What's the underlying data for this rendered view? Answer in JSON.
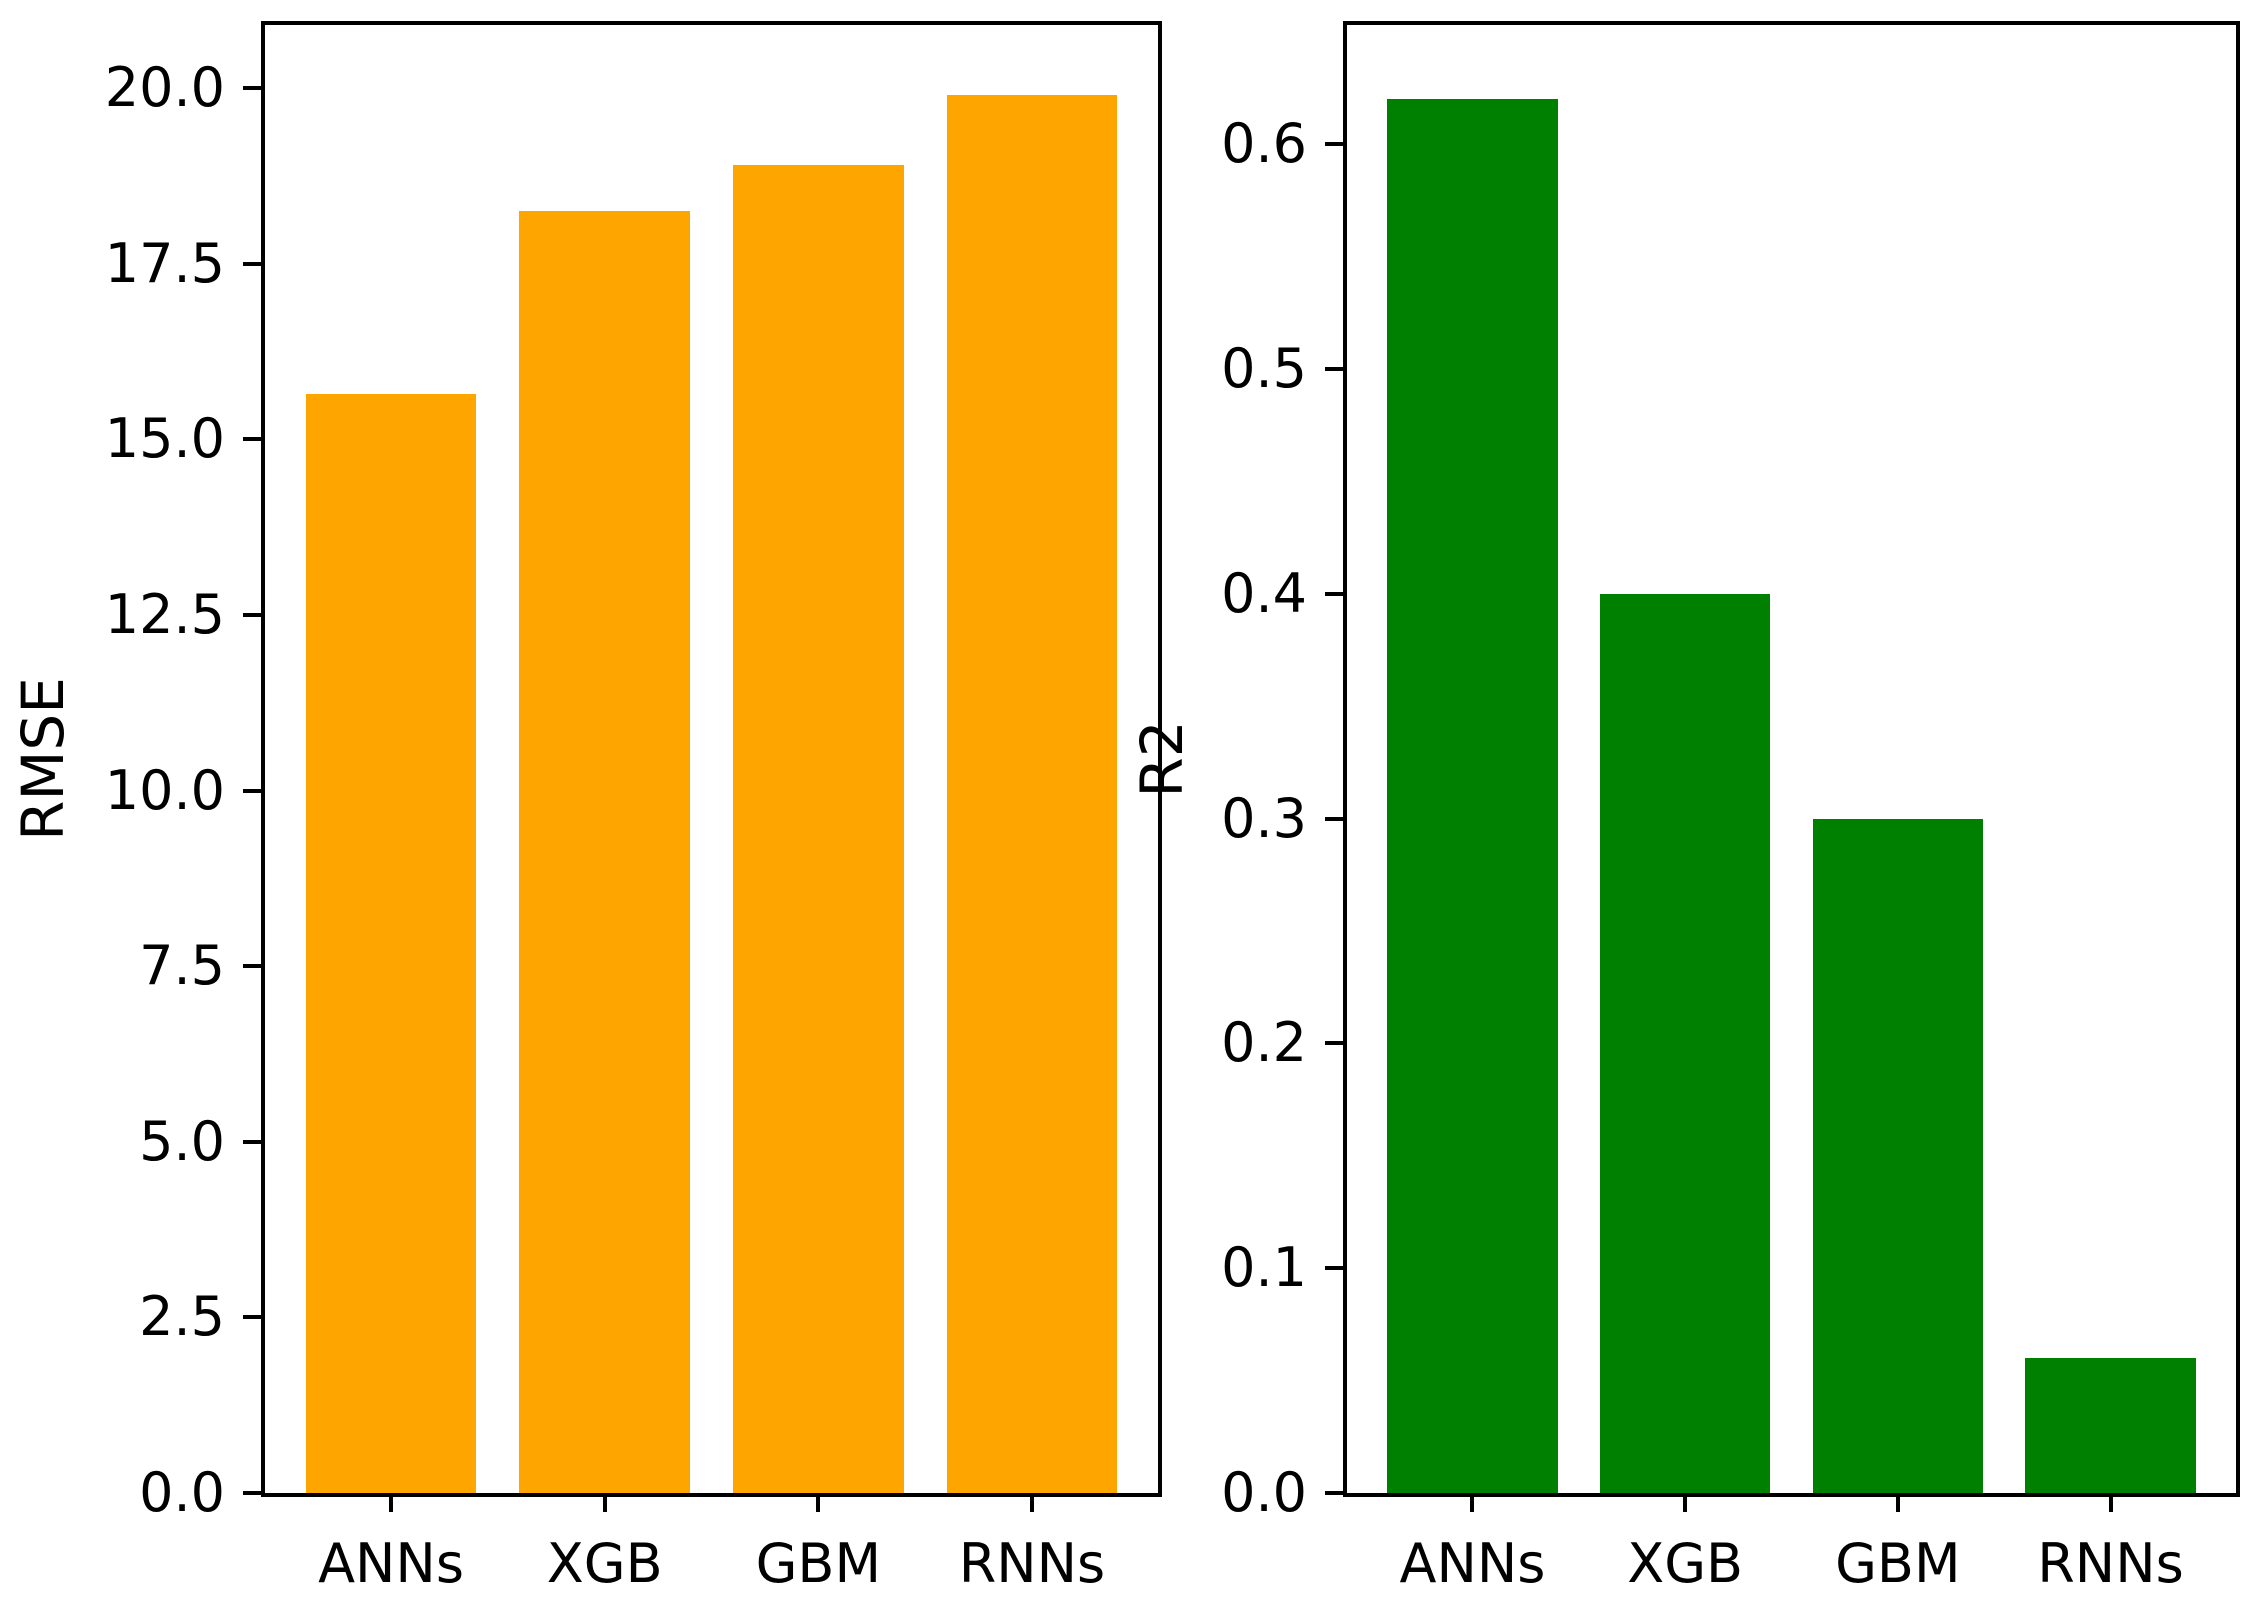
{
  "figure": {
    "background": "#ffffff",
    "spine_color": "#000000",
    "text_color": "#000000"
  },
  "chart_data": [
    {
      "type": "bar",
      "title": "",
      "xlabel": "",
      "ylabel": "RMSE",
      "categories": [
        "ANNs",
        "XGB",
        "GBM",
        "RNNs"
      ],
      "values": [
        15.65,
        18.25,
        18.9,
        19.9
      ],
      "bar_color": "#FFA500",
      "yticks": [
        0.0,
        2.5,
        5.0,
        7.5,
        10.0,
        12.5,
        15.0,
        17.5,
        20.0
      ],
      "ytick_labels": [
        "0.0",
        "2.5",
        "5.0",
        "7.5",
        "10.0",
        "12.5",
        "15.0",
        "17.5",
        "20.0"
      ],
      "ylim": [
        0,
        20.9
      ],
      "grid": false,
      "legend": null,
      "bar_width": 0.8,
      "x_margin": 0.05
    },
    {
      "type": "bar",
      "title": "",
      "xlabel": "",
      "ylabel": "R2",
      "categories": [
        "ANNs",
        "XGB",
        "GBM",
        "RNNs"
      ],
      "values": [
        0.62,
        0.4,
        0.3,
        0.06
      ],
      "bar_color": "#008000",
      "yticks": [
        0.0,
        0.1,
        0.2,
        0.3,
        0.4,
        0.5,
        0.6
      ],
      "ytick_labels": [
        "0.0",
        "0.1",
        "0.2",
        "0.3",
        "0.4",
        "0.5",
        "0.6"
      ],
      "ylim": [
        0,
        0.653
      ],
      "grid": false,
      "legend": null,
      "bar_width": 0.8,
      "x_margin": 0.05
    }
  ]
}
